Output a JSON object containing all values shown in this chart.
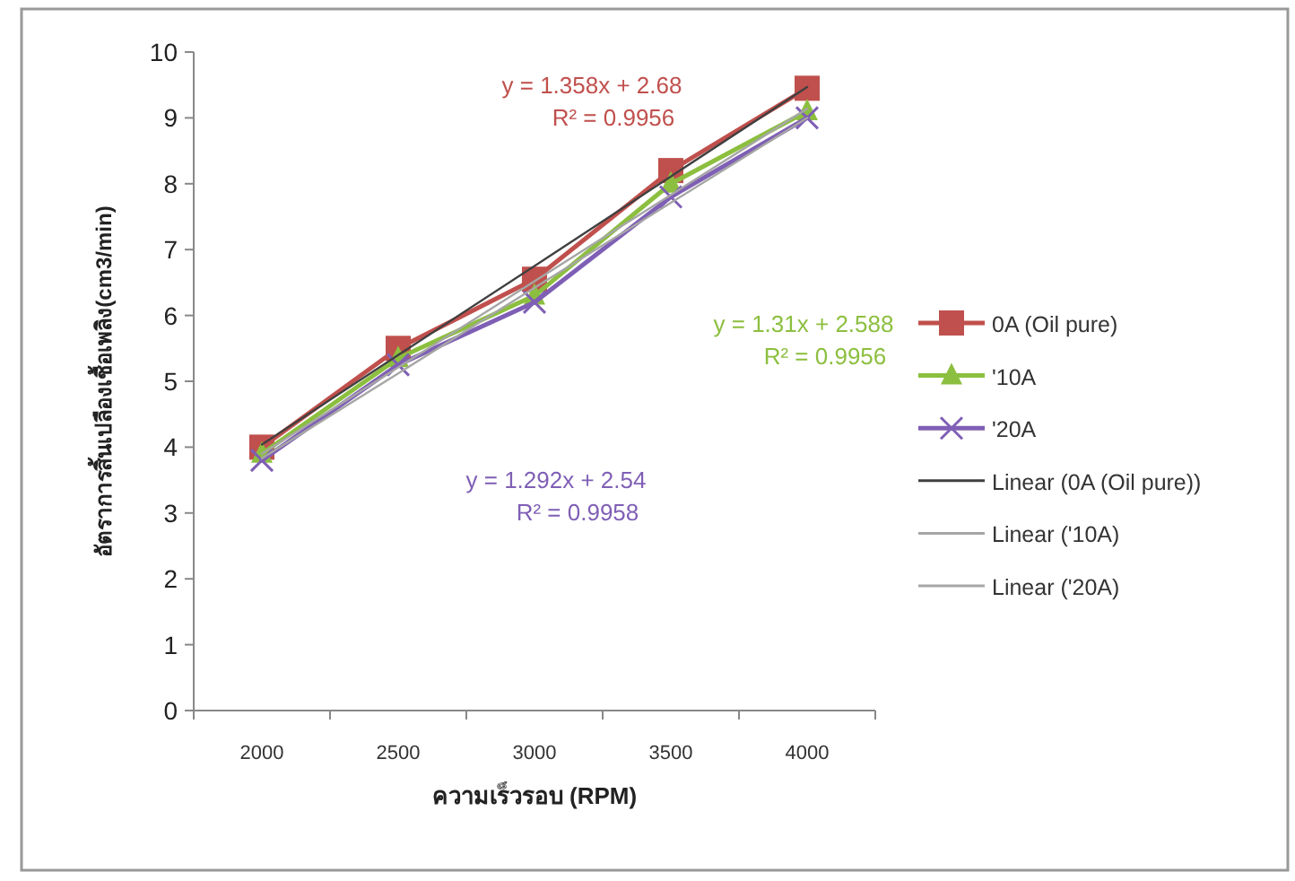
{
  "chart_data": {
    "type": "line",
    "xlabel": "ความเร็วรอบ (RPM)",
    "ylabel": "อัตราการสิ้นเปลืองเชื้อเพลิง(cm3/min)",
    "categories": [
      "2000",
      "2500",
      "3000",
      "3500",
      "4000"
    ],
    "series": [
      {
        "name": "0A (Oil pure)",
        "color": "#c0504d",
        "marker": "square",
        "values": [
          4.0,
          5.5,
          6.55,
          8.2,
          9.45
        ]
      },
      {
        "name": "'10A",
        "color": "#8cbf3f",
        "marker": "triangle",
        "values": [
          3.9,
          5.35,
          6.3,
          8.0,
          9.1
        ]
      },
      {
        "name": "'20A",
        "color": "#7f5fb5",
        "marker": "cross",
        "values": [
          3.8,
          5.25,
          6.2,
          7.8,
          9.0
        ]
      },
      {
        "name": "Linear (0A (Oil pure))",
        "color": "#404040",
        "marker": "none",
        "values": [
          4.04,
          5.4,
          6.75,
          8.11,
          9.47
        ]
      },
      {
        "name": "Linear ('10A)",
        "color": "#a6a6a6",
        "marker": "none",
        "values": [
          3.9,
          5.21,
          6.52,
          7.83,
          9.14
        ]
      },
      {
        "name": "Linear ('20A)",
        "color": "#a6a6a6",
        "marker": "none",
        "values": [
          3.83,
          5.12,
          6.42,
          7.71,
          9.0
        ]
      }
    ],
    "annotations": [
      "y = 1.358x + 2.68\nR² = 0.9956",
      "y = 1.31x + 2.588\nR² = 0.9956",
      "y = 1.292x + 2.54\nR² = 0.9958"
    ],
    "ylim": [
      0,
      10
    ],
    "yticks": [
      0,
      1,
      2,
      3,
      4,
      5,
      6,
      7,
      8,
      9,
      10
    ],
    "grid": false,
    "legend": "right",
    "line_style": "solid"
  }
}
